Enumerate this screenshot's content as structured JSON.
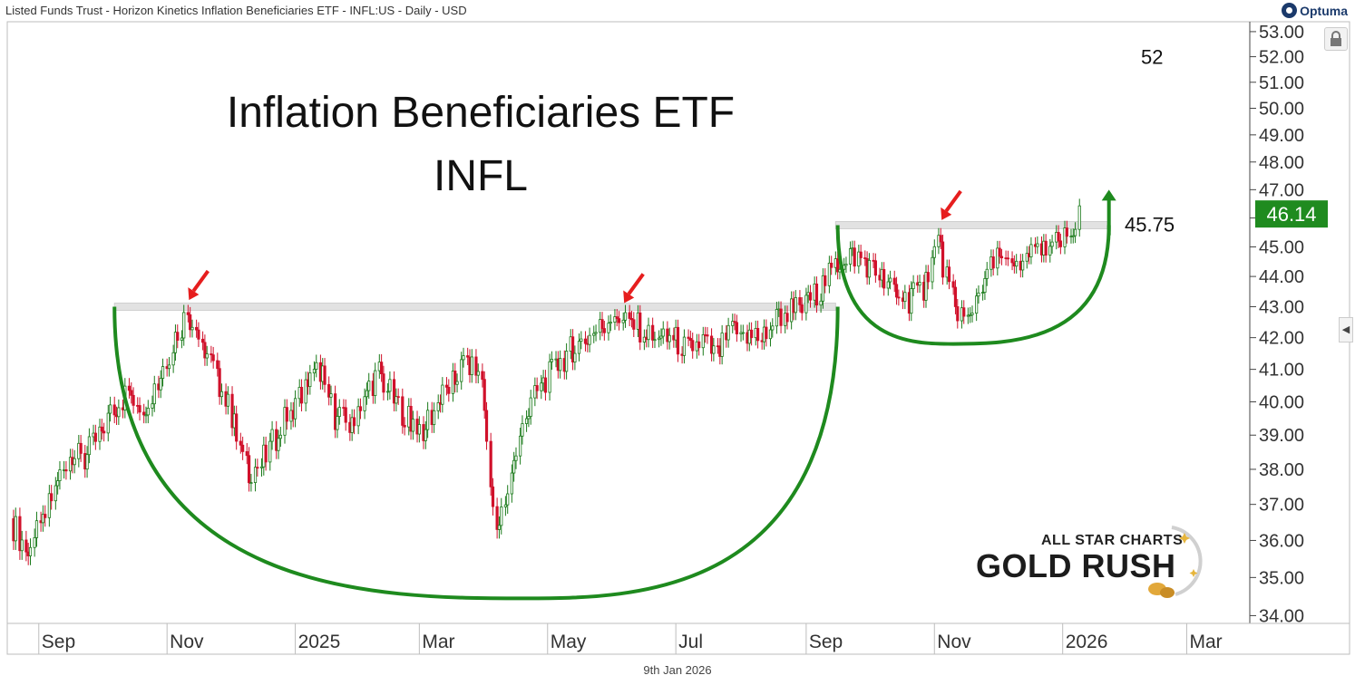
{
  "header": {
    "title": "Listed Funds Trust - Horizon Kinetics Inflation Beneficiaries ETF - INFL:US - Daily - USD"
  },
  "logo": {
    "text": "Optuma"
  },
  "footer": {
    "date": "9th Jan 2026"
  },
  "watermark": {
    "line1": "ALL STAR CHARTS",
    "line2": "GOLD RUSH"
  },
  "colors": {
    "up": "#1a7a1a",
    "down": "#d0102a",
    "pattern": "#1e8a1e",
    "arrow": "#e61e1e",
    "price_tag": "#1f8b1f",
    "resistance": "#e2e2e2"
  },
  "chart_data": {
    "type": "candlestick",
    "title": "Inflation Beneficiaries ETF",
    "subtitle": "INFL",
    "x_tick_labels": [
      "Sep",
      "Nov",
      "2025",
      "Mar",
      "May",
      "Jul",
      "Sep",
      "Nov",
      "2026",
      "Mar"
    ],
    "x_tick_dates": [
      "2024-09-01",
      "2024-11-01",
      "2025-01-01",
      "2025-03-01",
      "2025-05-01",
      "2025-07-01",
      "2025-09-01",
      "2025-11-01",
      "2026-01-01",
      "2026-03-01"
    ],
    "xlim": [
      "2024-08-17",
      "2026-03-31"
    ],
    "y_tick_labels": [
      "34.00",
      "35.00",
      "36.00",
      "37.00",
      "38.00",
      "39.00",
      "40.00",
      "41.00",
      "42.00",
      "43.00",
      "44.00",
      "45.00",
      "46.00",
      "47.00",
      "48.00",
      "49.00",
      "50.00",
      "51.00",
      "52.00",
      "53.00"
    ],
    "ylim": [
      33.8,
      53.4
    ],
    "y_scale": "log",
    "last_price": "46.14",
    "annotations": [
      {
        "text": "45.75",
        "price": 45.75
      },
      {
        "text": "52",
        "price": 52.0
      }
    ],
    "resistance_levels": [
      {
        "price": 43.0,
        "start": "2024-10-07",
        "end": "2025-09-15"
      },
      {
        "price": 45.75,
        "start": "2025-09-15",
        "end": "2026-01-23"
      }
    ],
    "markers": [
      {
        "date": "2024-11-11",
        "price": 43.1
      },
      {
        "date": "2025-06-06",
        "price": 43.0
      },
      {
        "date": "2025-11-04",
        "price": 45.8
      }
    ],
    "patterns": [
      {
        "kind": "cup",
        "start": "2024-10-07",
        "end": "2025-09-16",
        "bottom_date": "2025-04-20",
        "rim": 43.0,
        "bottom": 34.45
      },
      {
        "kind": "handle",
        "start": "2025-09-16",
        "end": "2026-01-23",
        "bottom_date": "2025-11-10",
        "rim": 45.75,
        "bottom": 41.8
      }
    ],
    "breakout_arrow": {
      "from_date": "2026-01-21",
      "from_price": 45.4,
      "to_date": "2026-01-23",
      "to_price": 47.0
    },
    "series": [
      {
        "date": "2024-08-19",
        "close": 36.6
      },
      {
        "date": "2024-08-26",
        "close": 35.8
      },
      {
        "date": "2024-09-02",
        "close": 36.2
      },
      {
        "date": "2024-09-09",
        "close": 37.4
      },
      {
        "date": "2024-09-16",
        "close": 38.5
      },
      {
        "date": "2024-09-23",
        "close": 38.2
      },
      {
        "date": "2024-09-30",
        "close": 39.0
      },
      {
        "date": "2024-10-07",
        "close": 39.8
      },
      {
        "date": "2024-10-14",
        "close": 40.3
      },
      {
        "date": "2024-10-21",
        "close": 39.9
      },
      {
        "date": "2024-10-28",
        "close": 40.6
      },
      {
        "date": "2024-11-04",
        "close": 41.8
      },
      {
        "date": "2024-11-11",
        "close": 42.8
      },
      {
        "date": "2024-11-18",
        "close": 41.9
      },
      {
        "date": "2024-11-25",
        "close": 40.8
      },
      {
        "date": "2024-12-02",
        "close": 39.6
      },
      {
        "date": "2024-12-09",
        "close": 38.0
      },
      {
        "date": "2024-12-16",
        "close": 38.1
      },
      {
        "date": "2024-12-23",
        "close": 38.9
      },
      {
        "date": "2024-12-30",
        "close": 39.8
      },
      {
        "date": "2025-01-06",
        "close": 40.4
      },
      {
        "date": "2025-01-13",
        "close": 41.0
      },
      {
        "date": "2025-01-20",
        "close": 39.6
      },
      {
        "date": "2025-01-27",
        "close": 39.3
      },
      {
        "date": "2025-02-03",
        "close": 40.2
      },
      {
        "date": "2025-02-10",
        "close": 40.9
      },
      {
        "date": "2025-02-17",
        "close": 40.1
      },
      {
        "date": "2025-02-24",
        "close": 39.5
      },
      {
        "date": "2025-03-03",
        "close": 39.2
      },
      {
        "date": "2025-03-10",
        "close": 39.9
      },
      {
        "date": "2025-03-17",
        "close": 40.6
      },
      {
        "date": "2025-03-24",
        "close": 41.3
      },
      {
        "date": "2025-03-31",
        "close": 40.7
      },
      {
        "date": "2025-04-07",
        "close": 36.0
      },
      {
        "date": "2025-04-14",
        "close": 37.8
      },
      {
        "date": "2025-04-21",
        "close": 39.5
      },
      {
        "date": "2025-04-28",
        "close": 40.5
      },
      {
        "date": "2025-05-05",
        "close": 41.0
      },
      {
        "date": "2025-05-12",
        "close": 41.6
      },
      {
        "date": "2025-05-19",
        "close": 41.9
      },
      {
        "date": "2025-05-26",
        "close": 42.3
      },
      {
        "date": "2025-06-02",
        "close": 42.8
      },
      {
        "date": "2025-06-09",
        "close": 42.6
      },
      {
        "date": "2025-06-16",
        "close": 42.2
      },
      {
        "date": "2025-06-23",
        "close": 41.8
      },
      {
        "date": "2025-06-30",
        "close": 42.0
      },
      {
        "date": "2025-07-07",
        "close": 41.6
      },
      {
        "date": "2025-07-14",
        "close": 41.9
      },
      {
        "date": "2025-07-21",
        "close": 41.4
      },
      {
        "date": "2025-07-28",
        "close": 42.2
      },
      {
        "date": "2025-08-04",
        "close": 42.1
      },
      {
        "date": "2025-08-11",
        "close": 42.0
      },
      {
        "date": "2025-08-18",
        "close": 42.6
      },
      {
        "date": "2025-08-25",
        "close": 42.9
      },
      {
        "date": "2025-09-01",
        "close": 43.0
      },
      {
        "date": "2025-09-08",
        "close": 43.6
      },
      {
        "date": "2025-09-15",
        "close": 44.3
      },
      {
        "date": "2025-09-22",
        "close": 44.8
      },
      {
        "date": "2025-09-29",
        "close": 44.5
      },
      {
        "date": "2025-10-06",
        "close": 44.0
      },
      {
        "date": "2025-10-13",
        "close": 43.5
      },
      {
        "date": "2025-10-20",
        "close": 43.2
      },
      {
        "date": "2025-10-27",
        "close": 43.6
      },
      {
        "date": "2025-11-03",
        "close": 45.2
      },
      {
        "date": "2025-11-10",
        "close": 43.2
      },
      {
        "date": "2025-11-17",
        "close": 42.5
      },
      {
        "date": "2025-11-24",
        "close": 43.8
      },
      {
        "date": "2025-12-01",
        "close": 44.6
      },
      {
        "date": "2025-12-08",
        "close": 44.2
      },
      {
        "date": "2025-12-15",
        "close": 44.6
      },
      {
        "date": "2025-12-22",
        "close": 44.9
      },
      {
        "date": "2025-12-29",
        "close": 45.1
      },
      {
        "date": "2026-01-05",
        "close": 45.3
      },
      {
        "date": "2026-01-09",
        "close": 46.14
      }
    ]
  }
}
